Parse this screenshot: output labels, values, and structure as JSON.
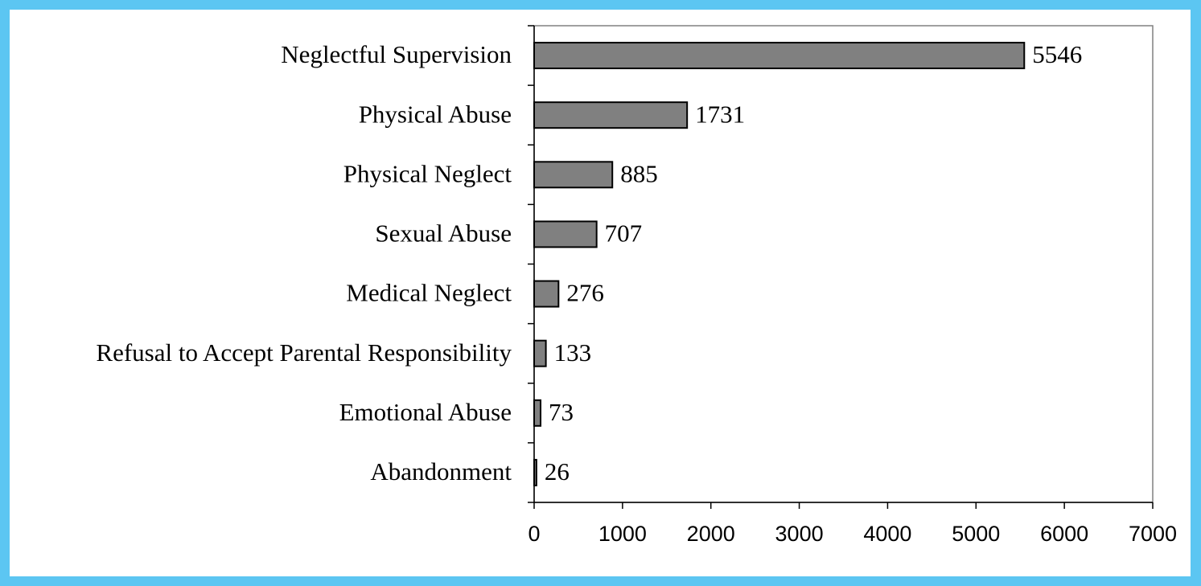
{
  "chart_data": {
    "type": "bar",
    "orientation": "horizontal",
    "categories": [
      "Neglectful Supervision",
      "Physical Abuse",
      "Physical Neglect",
      "Sexual Abuse",
      "Medical Neglect",
      "Refusal to Accept Parental Responsibility",
      "Emotional Abuse",
      "Abandonment"
    ],
    "values": [
      5546,
      1731,
      885,
      707,
      276,
      133,
      73,
      26
    ],
    "color": "#808080",
    "xlim": [
      0,
      7000
    ],
    "xticks": [
      0,
      1000,
      2000,
      3000,
      4000,
      5000,
      6000,
      7000
    ],
    "grid": false
  }
}
